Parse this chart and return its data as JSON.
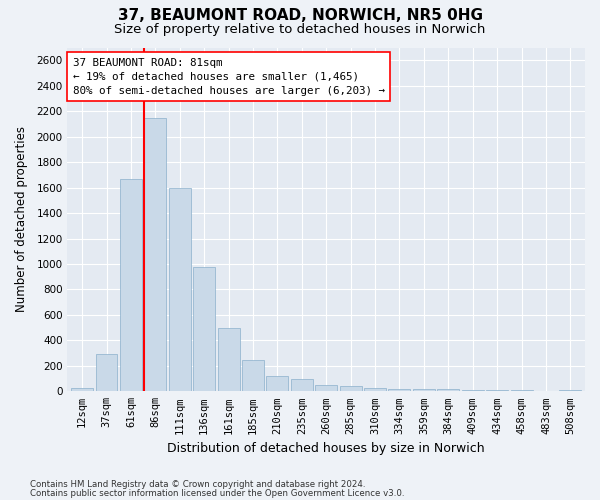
{
  "title1": "37, BEAUMONT ROAD, NORWICH, NR5 0HG",
  "title2": "Size of property relative to detached houses in Norwich",
  "xlabel": "Distribution of detached houses by size in Norwich",
  "ylabel": "Number of detached properties",
  "categories": [
    "12sqm",
    "37sqm",
    "61sqm",
    "86sqm",
    "111sqm",
    "136sqm",
    "161sqm",
    "185sqm",
    "210sqm",
    "235sqm",
    "260sqm",
    "285sqm",
    "310sqm",
    "334sqm",
    "359sqm",
    "384sqm",
    "409sqm",
    "434sqm",
    "458sqm",
    "483sqm",
    "508sqm"
  ],
  "values": [
    25,
    290,
    1665,
    2150,
    1600,
    975,
    500,
    245,
    120,
    100,
    50,
    45,
    25,
    20,
    15,
    15,
    10,
    10,
    10,
    5,
    10
  ],
  "bar_color": "#c9d9e8",
  "bar_edge_color": "#8ab0cc",
  "vline_color": "red",
  "annotation_text": "37 BEAUMONT ROAD: 81sqm\n← 19% of detached houses are smaller (1,465)\n80% of semi-detached houses are larger (6,203) →",
  "annotation_box_color": "white",
  "annotation_box_edge": "red",
  "ylim": [
    0,
    2700
  ],
  "yticks": [
    0,
    200,
    400,
    600,
    800,
    1000,
    1200,
    1400,
    1600,
    1800,
    2000,
    2200,
    2400,
    2600
  ],
  "footnote1": "Contains HM Land Registry data © Crown copyright and database right 2024.",
  "footnote2": "Contains public sector information licensed under the Open Government Licence v3.0.",
  "bg_color": "#eef2f7",
  "plot_bg_color": "#e4eaf2",
  "grid_color": "#ffffff",
  "title1_fontsize": 11,
  "title2_fontsize": 9.5,
  "tick_fontsize": 7.5,
  "ylabel_fontsize": 8.5,
  "xlabel_fontsize": 9,
  "annot_fontsize": 7.8,
  "footnote_fontsize": 6.2
}
